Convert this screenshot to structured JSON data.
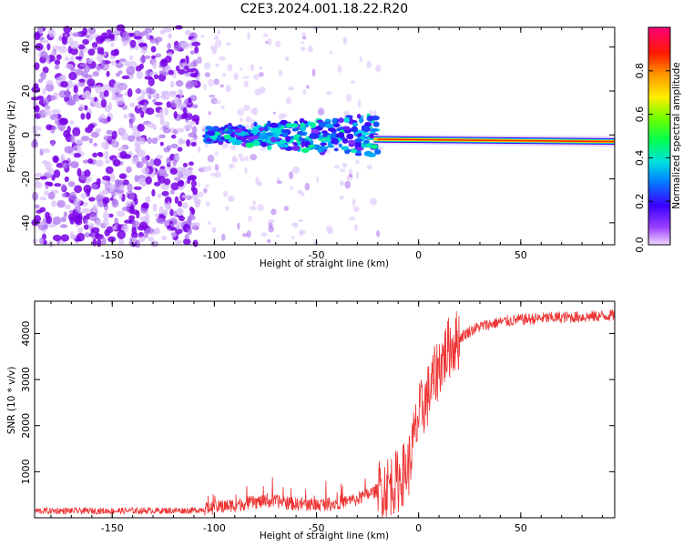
{
  "title": "C2E3.2024.001.18.22.R20",
  "colors": {
    "noise": "#8800ee",
    "line_main": "#ff2200",
    "snr_line": "#ee3333"
  },
  "chart_data": [
    {
      "type": "heatmap",
      "name": "spectrogram",
      "xlabel": "Height of straight line (km)",
      "ylabel": "Frequency (Hz)",
      "xlim": [
        -188,
        96
      ],
      "ylim": [
        -50,
        49
      ],
      "xticks": [
        -150,
        -100,
        -50,
        0,
        50
      ],
      "yticks": [
        -40,
        -20,
        0,
        20,
        40
      ],
      "colorbar": {
        "label": "Normalized spectral amplitude",
        "range": [
          0.0,
          1.0
        ],
        "ticks": [
          0.0,
          0.2,
          0.4,
          0.6,
          0.8
        ],
        "colormap": "rainbow (purple-blue-cyan-green-yellow-red-magenta)"
      },
      "features": [
        {
          "region": "noise",
          "x_range": [
            -188,
            -108
          ],
          "freq_range": [
            -50,
            49
          ],
          "amplitude": 0.1
        },
        {
          "region": "sparse-noise",
          "x_range": [
            -108,
            -20
          ],
          "freq_range": [
            -50,
            49
          ],
          "amplitude": 0.05
        },
        {
          "region": "signal-scatter",
          "x_range": [
            -105,
            -20
          ],
          "freq_center": 0,
          "freq_spread": 8,
          "amplitude": 0.3
        },
        {
          "region": "signal-line",
          "x_range": [
            -20,
            96
          ],
          "freq_center": -2,
          "freq_end": -3,
          "amplitude": 0.9
        }
      ]
    },
    {
      "type": "line",
      "name": "snr",
      "xlabel": "Height of straight line (km)",
      "ylabel": "SNR (10 * v/v)",
      "xlim": [
        -188,
        96
      ],
      "ylim": [
        0,
        4700
      ],
      "xticks": [
        -150,
        -100,
        -50,
        0,
        50
      ],
      "yticks": [
        1000,
        2000,
        3000,
        4000
      ],
      "series_envelope": {
        "x": [
          -188,
          -150,
          -110,
          -100,
          -90,
          -80,
          -70,
          -60,
          -50,
          -40,
          -30,
          -20,
          -10,
          -5,
          0,
          5,
          10,
          15,
          20,
          25,
          30,
          40,
          50,
          60,
          70,
          80,
          90,
          96
        ],
        "y": [
          150,
          150,
          160,
          220,
          280,
          340,
          360,
          300,
          280,
          320,
          400,
          600,
          800,
          1100,
          2200,
          2700,
          3300,
          3700,
          3900,
          4050,
          4150,
          4250,
          4300,
          4330,
          4350,
          4360,
          4380,
          4400
        ]
      }
    }
  ]
}
